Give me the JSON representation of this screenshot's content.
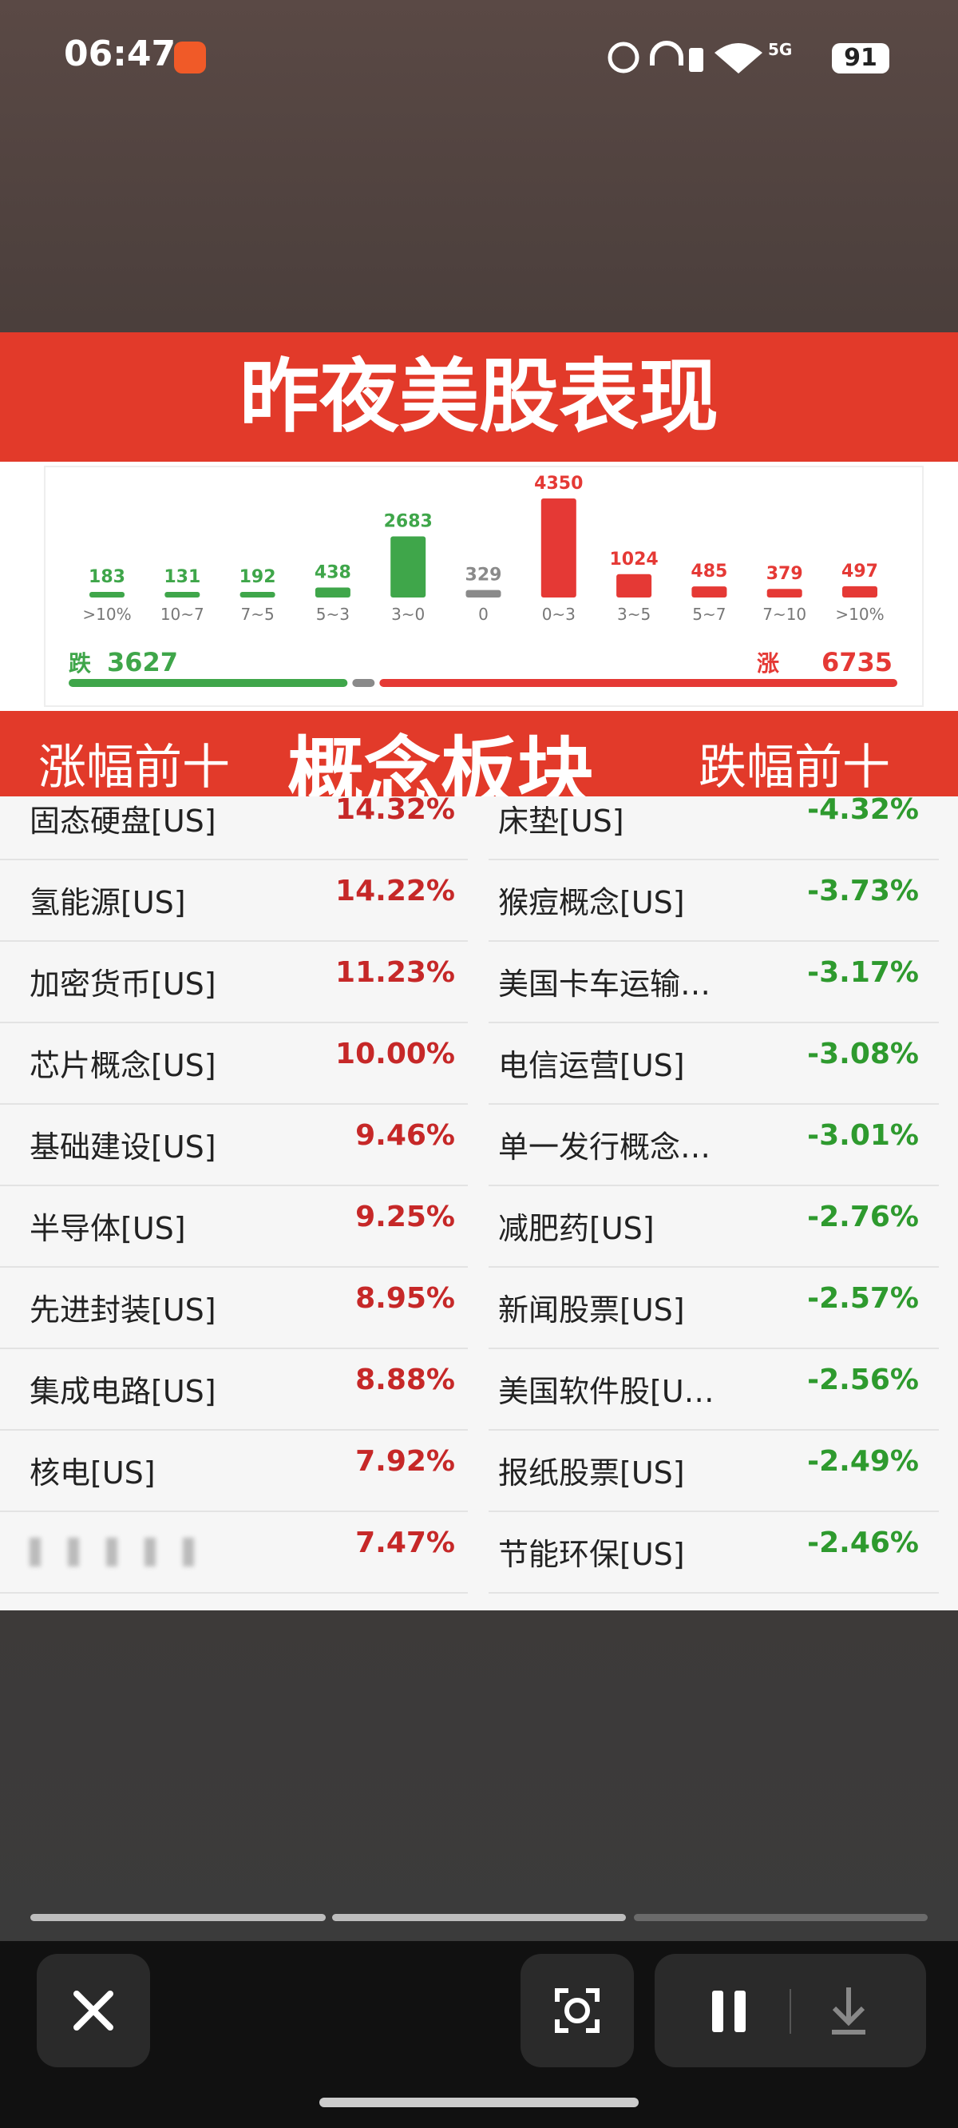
{
  "status_bar": {
    "time": "06:47",
    "network": "5G",
    "battery": "91"
  },
  "poster": {
    "title": "昨夜美股表现",
    "chart_data": {
      "type": "bar",
      "categories": [
        ">10%",
        "10~7",
        "7~5",
        "5~3",
        "3~0",
        "0",
        "0~3",
        "3~5",
        "5~7",
        "7~10",
        ">10%"
      ],
      "values": [
        183,
        131,
        192,
        438,
        2683,
        329,
        4350,
        1024,
        485,
        379,
        497
      ],
      "colors": [
        "#3fa64a",
        "#3fa64a",
        "#3fa64a",
        "#3fa64a",
        "#3fa64a",
        "#8a8a8a",
        "#e53935",
        "#e53935",
        "#e53935",
        "#e53935",
        "#e53935"
      ]
    },
    "summary": {
      "fall_label": "跌",
      "fall": 3627,
      "rise_label": "涨",
      "rise": 6735,
      "fall_color": "#3fa64a",
      "rise_color": "#e53935"
    },
    "banner": {
      "left": "涨幅前十",
      "center": "概念板块",
      "right": "跌幅前十"
    },
    "gainers": [
      {
        "name": "固态硬盘[US]",
        "change": "14.32%"
      },
      {
        "name": "氢能源[US]",
        "change": "14.22%"
      },
      {
        "name": "加密货币[US]",
        "change": "11.23%"
      },
      {
        "name": "芯片概念[US]",
        "change": "10.00%"
      },
      {
        "name": "基础建设[US]",
        "change": "9.46%"
      },
      {
        "name": "半导体[US]",
        "change": "9.25%"
      },
      {
        "name": "先进封装[US]",
        "change": "8.95%"
      },
      {
        "name": "集成电路[US]",
        "change": "8.88%"
      },
      {
        "name": "核电[US]",
        "change": "7.92%"
      },
      {
        "change": "7.47%"
      }
    ],
    "losers": [
      {
        "name": "床垫[US]",
        "change": "-4.32%"
      },
      {
        "name": "猴痘概念[US]",
        "change": "-3.73%"
      },
      {
        "name": "美国卡车运输…",
        "change": "-3.17%"
      },
      {
        "name": "电信运营[US]",
        "change": "-3.08%"
      },
      {
        "name": "单一发行概念…",
        "change": "-3.01%"
      },
      {
        "name": "减肥药[US]",
        "change": "-2.76%"
      },
      {
        "name": "新闻股票[US]",
        "change": "-2.57%"
      },
      {
        "name": "美国软件股[U…",
        "change": "-2.56%"
      },
      {
        "name": "报纸股票[US]",
        "change": "-2.49%"
      },
      {
        "name": "节能环保[US]",
        "change": "-2.46%"
      }
    ]
  }
}
